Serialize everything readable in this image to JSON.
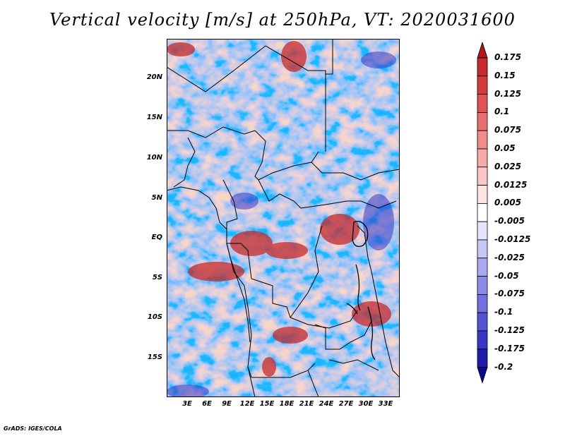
{
  "title": "Vertical velocity [m/s] at 250hPa, VT: 2020031600",
  "credit": "GrADS: IGES/COLA",
  "map": {
    "lat_labels": [
      "20N",
      "15N",
      "10N",
      "5N",
      "EQ",
      "5S",
      "10S",
      "15S"
    ],
    "lon_labels": [
      "3E",
      "6E",
      "9E",
      "12E",
      "15E",
      "18E",
      "21E",
      "24E",
      "27E",
      "30E",
      "33E"
    ]
  },
  "colorbar": {
    "labels": [
      "0.175",
      "0.15",
      "0.125",
      "0.1",
      "0.075",
      "0.05",
      "0.025",
      "0.0125",
      "0.005",
      "-0.005",
      "-0.0125",
      "-0.025",
      "-0.05",
      "-0.075",
      "-0.1",
      "-0.125",
      "-0.175",
      "-0.2"
    ],
    "colors": [
      "#b2181b",
      "#c62a2a",
      "#d43c3c",
      "#de5454",
      "#e87070",
      "#f08c8c",
      "#f6aaaa",
      "#fac6c6",
      "#fde4e4",
      "#ffffff",
      "#e4e4fc",
      "#c8c8f6",
      "#aaaaf0",
      "#8c8ce8",
      "#7070de",
      "#5454d2",
      "#3838c2",
      "#1c1ca8",
      "#0a0a8c"
    ]
  }
}
